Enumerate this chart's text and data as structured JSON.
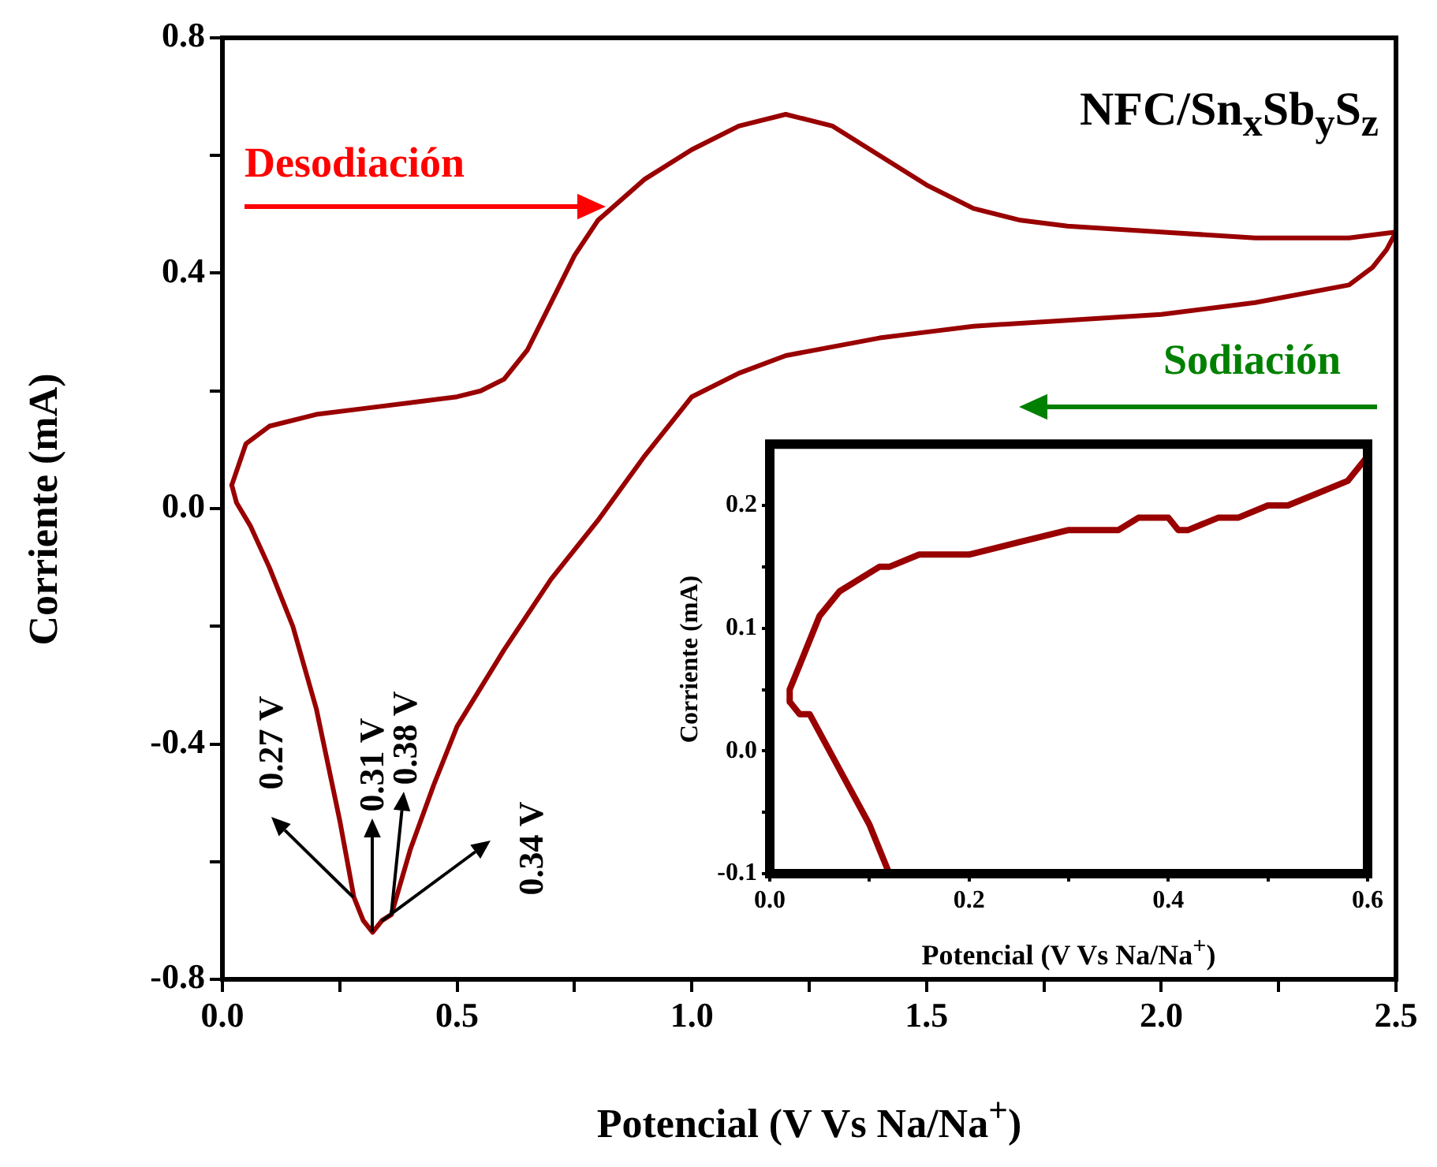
{
  "chart_data": [
    {
      "type": "line",
      "xlabel": "Potencial (V Vs Na/Na$^{+}$)",
      "ylabel": "Corriente (mA)",
      "xlim": [
        0,
        2.5
      ],
      "xticks": [
        {
          "value": 0,
          "label": "0.0"
        },
        {
          "value": 0.25,
          "label": null
        },
        0.5,
        {
          "value": 0.75,
          "label": null
        },
        {
          "value": 1,
          "label": "1.0"
        },
        {
          "value": 1.25,
          "label": null
        },
        1.5,
        {
          "value": 1.75,
          "label": null
        },
        {
          "value": 2,
          "label": "2.0"
        },
        {
          "value": 2.25,
          "label": null
        },
        2.5
      ],
      "ylim": [
        -0.8,
        0.8
      ],
      "yticks": [
        -0.8,
        {
          "value": -0.6,
          "label": null
        },
        -0.4,
        {
          "value": -0.2,
          "label": null
        },
        {
          "value": 0,
          "label": "0.0"
        },
        {
          "value": 0.2,
          "label": null
        },
        0.4,
        {
          "value": 0.6,
          "label": null
        },
        0.8
      ],
      "grid": false,
      "legend": false,
      "marker": "none",
      "line_style": "solid",
      "series": [
        {
          "color": "#990000",
          "x": [
            0.02,
            0.05,
            0.1,
            0.2,
            0.3,
            0.4,
            0.5,
            0.55,
            0.6,
            0.65,
            0.7,
            0.75,
            0.8,
            0.9,
            1.0,
            1.1,
            1.2,
            1.3,
            1.4,
            1.5,
            1.6,
            1.7,
            1.8,
            2.0,
            2.2,
            2.4,
            2.5
          ],
          "values": [
            0.04,
            0.11,
            0.14,
            0.16,
            0.17,
            0.18,
            0.19,
            0.2,
            0.22,
            0.27,
            0.35,
            0.43,
            0.49,
            0.56,
            0.61,
            0.65,
            0.67,
            0.65,
            0.6,
            0.55,
            0.51,
            0.49,
            0.48,
            0.47,
            0.46,
            0.46,
            0.47
          ]
        },
        {
          "color": "#990000",
          "x": [
            0.02,
            0.03,
            0.06,
            0.1,
            0.15,
            0.2,
            0.25,
            0.28,
            0.3,
            0.32,
            0.34,
            0.36,
            0.4,
            0.45,
            0.5,
            0.6,
            0.7,
            0.8,
            0.9,
            1.0,
            1.1,
            1.2,
            1.4,
            1.5,
            1.6,
            1.8,
            2.0,
            2.2,
            2.4,
            2.45,
            2.48,
            2.5
          ],
          "values": [
            0.04,
            0.01,
            -0.03,
            -0.1,
            -0.2,
            -0.34,
            -0.53,
            -0.66,
            -0.7,
            -0.72,
            -0.7,
            -0.69,
            -0.58,
            -0.47,
            -0.37,
            -0.24,
            -0.12,
            -0.02,
            0.09,
            0.19,
            0.23,
            0.26,
            0.29,
            0.3,
            0.31,
            0.32,
            0.33,
            0.35,
            0.38,
            0.41,
            0.44,
            0.47
          ]
        }
      ],
      "annotations": [
        "NFC/Sn$_{x}$Sb$_{y}$S$_{z}$",
        "Desodiación",
        "Sodiación",
        {
          "text": "0.27 V",
          "x": 0.28,
          "y": -0.66
        },
        {
          "text": "0.31 V",
          "x": 0.32,
          "y": -0.72
        },
        {
          "text": "0.38 V",
          "x": 0.36,
          "y": -0.69
        },
        {
          "text": "0.34 V",
          "x": 0.34,
          "y": -0.7
        }
      ]
    },
    {
      "type": "line",
      "xlabel": "Potencial (V Vs Na/Na$^{+}$)",
      "ylabel": "Corriente (mA)",
      "xlim": [
        0,
        0.6
      ],
      "xticks": [
        {
          "value": 0,
          "label": "0.0"
        },
        {
          "value": 0.1,
          "label": null
        },
        0.2,
        {
          "value": 0.3,
          "label": null
        },
        0.4,
        {
          "value": 0.5,
          "label": null
        },
        0.6
      ],
      "ylim": [
        -0.1,
        0.25
      ],
      "yticks": [
        -0.1,
        {
          "value": -0.05,
          "label": null
        },
        {
          "value": 0,
          "label": "0.0"
        },
        {
          "value": 0.05,
          "label": null
        },
        0.1,
        {
          "value": 0.15,
          "label": null
        },
        0.2
      ],
      "grid": false,
      "legend": false,
      "marker": "none",
      "line_style": "solid",
      "series": [
        {
          "color": "#990000",
          "x": [
            0.6,
            0.58,
            0.55,
            0.52,
            0.5,
            0.47,
            0.45,
            0.42,
            0.41,
            0.4,
            0.37,
            0.35,
            0.3,
            0.25,
            0.2,
            0.15,
            0.12,
            0.11,
            0.09,
            0.07,
            0.05,
            0.04,
            0.03,
            0.02,
            0.02,
            0.03,
            0.04,
            0.06,
            0.08,
            0.1,
            0.12
          ],
          "values": [
            0.24,
            0.22,
            0.21,
            0.2,
            0.2,
            0.19,
            0.19,
            0.18,
            0.18,
            0.19,
            0.19,
            0.18,
            0.18,
            0.17,
            0.16,
            0.16,
            0.15,
            0.15,
            0.14,
            0.13,
            0.11,
            0.09,
            0.07,
            0.05,
            0.04,
            0.03,
            0.03,
            0.0,
            -0.03,
            -0.06,
            -0.1
          ]
        }
      ]
    }
  ]
}
